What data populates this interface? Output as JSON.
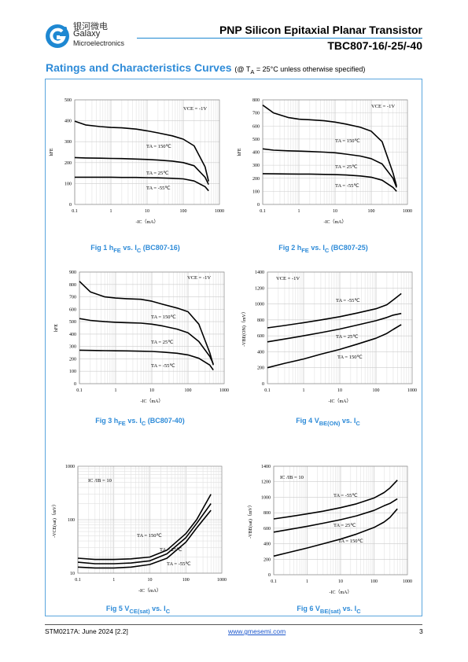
{
  "header": {
    "company_cn": "银河微电",
    "company_en": "Galaxy",
    "company_sub": "Microelectronics",
    "title": "PNP Silicon Epitaxial Planar Transistor",
    "part_numbers": "TBC807-16/-25/-40",
    "logo_icon": "galaxy-g-logo-icon",
    "logo_color": "#1e88d2"
  },
  "section": {
    "title": "Ratings and Characteristics Curves",
    "condition": "(@ T",
    "condition_sub": "A",
    "condition_rest": " = 25°C unless otherwise specified)"
  },
  "figures": [
    {
      "caption": "Fig 1    h",
      "caption_sub1": "FE",
      "caption_mid": " vs. I",
      "caption_sub2": "C",
      "caption_end": " (BC807-16)",
      "condition_label": "V",
      "condition_sub": "CE",
      "condition_val": "= -1V",
      "ylabel": "hFE",
      "xlabel": "-IC（mA）",
      "xscale": "log",
      "xticks": [
        "0.1",
        "1",
        "10",
        "100",
        "1000"
      ],
      "yticks": [
        "0",
        "100",
        "200",
        "300",
        "400",
        "500"
      ],
      "chart_data": {
        "type": "line",
        "xlim": [
          0.1,
          1000
        ],
        "ylim": [
          0,
          500
        ],
        "series": [
          {
            "name": "TA = 150℃",
            "x": [
              0.1,
              0.2,
              0.5,
              1,
              2,
              5,
              10,
              20,
              50,
              100,
              200,
              400,
              500
            ],
            "y": [
              398,
              380,
              372,
              368,
              366,
              360,
              352,
              342,
              328,
              312,
              280,
              180,
              110
            ]
          },
          {
            "name": "TA = 25℃",
            "x": [
              0.1,
              0.2,
              0.5,
              1,
              2,
              5,
              10,
              20,
              50,
              100,
              200,
              400,
              500
            ],
            "y": [
              224,
              222,
              221,
              220,
              219,
              217,
              215,
              212,
              207,
              200,
              185,
              130,
              95
            ]
          },
          {
            "name": "TA = -55℃",
            "x": [
              0.1,
              0.2,
              0.5,
              1,
              2,
              5,
              10,
              20,
              50,
              100,
              200,
              400,
              500
            ],
            "y": [
              130,
              130,
              130,
              130,
              129,
              129,
              128,
              127,
              125,
              122,
              112,
              85,
              65
            ]
          }
        ],
        "labels": [
          "TA = 150℃",
          "TA = 25℃",
          "TA = -55℃"
        ]
      }
    },
    {
      "caption": "Fig 2    h",
      "caption_sub1": "FE",
      "caption_mid": " vs. I",
      "caption_sub2": "C",
      "caption_end": " (BC807-25)",
      "condition_label": "V",
      "condition_sub": "CE",
      "condition_val": "= -1V",
      "ylabel": "hFE",
      "xlabel": "-IC（mA）",
      "xscale": "log",
      "xticks": [
        "0.1",
        "1",
        "10",
        "100",
        "1000"
      ],
      "yticks": [
        "0",
        "100",
        "200",
        "300",
        "400",
        "500",
        "600",
        "700",
        "800"
      ],
      "chart_data": {
        "type": "line",
        "xlim": [
          0.1,
          1000
        ],
        "ylim": [
          0,
          800
        ],
        "series": [
          {
            "name": "TA = 150℃",
            "x": [
              0.1,
              0.2,
              0.5,
              1,
              2,
              5,
              10,
              20,
              50,
              100,
              200,
              400,
              500
            ],
            "y": [
              760,
              700,
              665,
              652,
              648,
              640,
              630,
              615,
              590,
              560,
              480,
              240,
              140
            ]
          },
          {
            "name": "TA = 25℃",
            "x": [
              0.1,
              0.2,
              0.5,
              1,
              2,
              5,
              10,
              20,
              50,
              100,
              200,
              400,
              500
            ],
            "y": [
              425,
              415,
              410,
              408,
              405,
              400,
              395,
              385,
              370,
              350,
              310,
              200,
              130
            ]
          },
          {
            "name": "TA = -55℃",
            "x": [
              0.1,
              0.2,
              0.5,
              1,
              2,
              5,
              10,
              20,
              50,
              100,
              200,
              400,
              500
            ],
            "y": [
              235,
              234,
              233,
              232,
              232,
              230,
              228,
              225,
              218,
              208,
              185,
              130,
              100
            ]
          }
        ],
        "labels": [
          "TA = 150℃",
          "TA = 25℃",
          "TA = -55℃"
        ]
      }
    },
    {
      "caption": "Fig 3    h",
      "caption_sub1": "FE",
      "caption_mid": " vs. I",
      "caption_sub2": "C",
      "caption_end": " (BC807-40)",
      "condition_label": "V",
      "condition_sub": "CE",
      "condition_val": "= -1V",
      "ylabel": "hFE",
      "xlabel": "-IC（mA）",
      "xscale": "log",
      "xticks": [
        "0.1",
        "1",
        "10",
        "100",
        "1000"
      ],
      "yticks": [
        "0",
        "100",
        "200",
        "300",
        "400",
        "500",
        "600",
        "700",
        "800",
        "900"
      ],
      "chart_data": {
        "type": "line",
        "xlim": [
          0.1,
          1000
        ],
        "ylim": [
          0,
          900
        ],
        "series": [
          {
            "name": "TA = 150℃",
            "x": [
              0.1,
              0.2,
              0.5,
              1,
              2,
              5,
              10,
              20,
              50,
              100,
              200,
              400,
              500
            ],
            "y": [
              825,
              740,
              700,
              690,
              685,
              680,
              665,
              640,
              610,
              580,
              480,
              250,
              150
            ]
          },
          {
            "name": "TA = 25℃",
            "x": [
              0.1,
              0.2,
              0.5,
              1,
              2,
              5,
              10,
              20,
              50,
              100,
              200,
              400,
              500
            ],
            "y": [
              525,
              510,
              500,
              495,
              492,
              488,
              480,
              465,
              440,
              410,
              340,
              220,
              160
            ]
          },
          {
            "name": "TA = -55℃",
            "x": [
              0.1,
              0.2,
              0.5,
              1,
              2,
              5,
              10,
              20,
              50,
              100,
              200,
              400,
              500
            ],
            "y": [
              270,
              268,
              266,
              265,
              264,
              262,
              260,
              255,
              245,
              232,
              205,
              150,
              110
            ]
          }
        ],
        "labels": [
          "TA = 150℃",
          "TA = 25℃",
          "TA = -55℃"
        ]
      }
    },
    {
      "caption": "Fig 4    V",
      "caption_sub1": "BE(ON)",
      "caption_mid": " vs. I",
      "caption_sub2": "C",
      "caption_end": "",
      "condition_label": "V",
      "condition_sub": "CE",
      "condition_val": "= -1V",
      "ylabel": "-VBE(ON)（mV）",
      "xlabel": "-IC（mA）",
      "xscale": "log",
      "xticks": [
        "0.1",
        "1",
        "10",
        "100",
        "1000"
      ],
      "yticks": [
        "0",
        "200",
        "400",
        "600",
        "800",
        "1000",
        "1200",
        "1400"
      ],
      "chart_data": {
        "type": "line",
        "xlim": [
          0.1,
          1000
        ],
        "ylim": [
          0,
          1400
        ],
        "series": [
          {
            "name": "TA = -55℃",
            "x": [
              0.1,
              0.3,
              1,
              3,
              10,
              30,
              100,
              200,
              300,
              500
            ],
            "y": [
              700,
              730,
              765,
              800,
              840,
              885,
              940,
              990,
              1050,
              1130
            ]
          },
          {
            "name": "TA = 25℃",
            "x": [
              0.1,
              0.3,
              1,
              3,
              10,
              30,
              100,
              200,
              300,
              500
            ],
            "y": [
              525,
              560,
              600,
              640,
              685,
              735,
              790,
              830,
              860,
              880
            ]
          },
          {
            "name": "TA = 150℃",
            "x": [
              0.1,
              0.3,
              1,
              3,
              10,
              30,
              100,
              200,
              300,
              500
            ],
            "y": [
              200,
              255,
              310,
              370,
              430,
              495,
              570,
              630,
              680,
              740
            ]
          }
        ],
        "labels": [
          "TA = -55℃",
          "TA = 25℃",
          "TA = 150℃"
        ]
      }
    },
    {
      "caption": "Fig 5    V",
      "caption_sub1": "CE(sat)",
      "caption_mid": " vs. I",
      "caption_sub2": "C",
      "caption_end": "",
      "condition_label": "I",
      "condition_sub": "C",
      "condition_val": "/I",
      "condition_sub2": "B",
      "condition_val2": " = 10",
      "ylabel": "-VCE(sat)（mV）",
      "xlabel": "-IC（mA）",
      "xscale": "log",
      "yscale": "log",
      "xticks": [
        "0.1",
        "1",
        "10",
        "100",
        "1000"
      ],
      "yticks": [
        "10",
        "100",
        "1000"
      ],
      "chart_data": {
        "type": "line",
        "xlim": [
          0.1,
          1000
        ],
        "ylim": [
          10,
          1000
        ],
        "series": [
          {
            "name": "TA = 150℃",
            "x": [
              0.1,
              0.3,
              1,
              3,
              10,
              30,
              100,
              200,
              500
            ],
            "y": [
              19,
              18,
              18,
              18.5,
              20,
              27,
              55,
              100,
              300
            ]
          },
          {
            "name": "TA = 25℃",
            "x": [
              0.1,
              0.3,
              1,
              3,
              10,
              30,
              100,
              200,
              500
            ],
            "y": [
              16,
              15,
              15,
              15.5,
              17,
              23,
              46,
              85,
              200
            ]
          },
          {
            "name": "TA = -55℃",
            "x": [
              0.1,
              0.3,
              1,
              3,
              10,
              30,
              100,
              200,
              500
            ],
            "y": [
              13,
              12.5,
              12.5,
              13,
              14.5,
              19,
              38,
              70,
              150
            ]
          }
        ],
        "labels": [
          "TA = 150℃",
          "TA = 25℃",
          "TA = -55℃"
        ]
      }
    },
    {
      "caption": "Fig 6    V",
      "caption_sub1": "BE(sat)",
      "caption_mid": " vs. I",
      "caption_sub2": "C",
      "caption_end": "",
      "condition_label": "I",
      "condition_sub": "C",
      "condition_val": "/I",
      "condition_sub2": "B",
      "condition_val2": " = 10",
      "ylabel": "-VBE(sat)（mV）",
      "xlabel": "-IC（mA）",
      "xscale": "log",
      "xticks": [
        "0.1",
        "1",
        "10",
        "100",
        "1000"
      ],
      "yticks": [
        "0",
        "200",
        "400",
        "600",
        "800",
        "1000",
        "1200",
        "1400"
      ],
      "chart_data": {
        "type": "line",
        "xlim": [
          0.1,
          1000
        ],
        "ylim": [
          0,
          1400
        ],
        "series": [
          {
            "name": "TA = -55℃",
            "x": [
              0.1,
              0.3,
              1,
              3,
              10,
              30,
              100,
              200,
              300,
              500
            ],
            "y": [
              720,
              750,
              785,
              820,
              865,
              915,
              990,
              1060,
              1120,
              1220
            ]
          },
          {
            "name": "TA = 25℃",
            "x": [
              0.1,
              0.3,
              1,
              3,
              10,
              30,
              100,
              200,
              300,
              500
            ],
            "y": [
              550,
              585,
              625,
              665,
              710,
              760,
              830,
              890,
              920,
              980
            ]
          },
          {
            "name": "TA = 150℃",
            "x": [
              0.1,
              0.3,
              1,
              3,
              10,
              30,
              100,
              200,
              300,
              500
            ],
            "y": [
              240,
              290,
              345,
              400,
              460,
              525,
              610,
              680,
              740,
              850
            ]
          }
        ],
        "labels": [
          "TA = -55℃",
          "TA = 25℃",
          "TA = 150℃"
        ]
      }
    }
  ],
  "footer": {
    "doc_id": "STM0217A: June 2024 [2.2]",
    "website": "www.gmesemi.com",
    "page": "3"
  }
}
